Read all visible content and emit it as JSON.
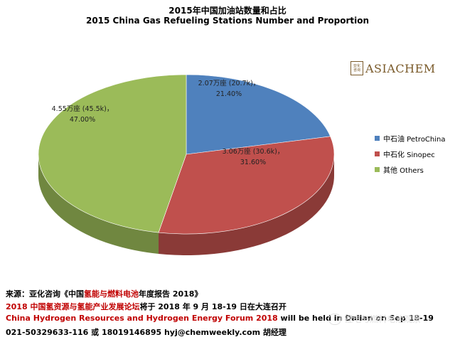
{
  "chart_data": {
    "type": "pie",
    "title": "2015年中国加油站数量和占比",
    "subtitle": "2015 China Gas Refueling Stations Number and Proportion",
    "slices": [
      {
        "name": "中石油 PetroChina",
        "value": 21.4,
        "label_line1": "2.07万座 (20.7k)，",
        "label_line2": "21.40%",
        "color": "#4F81BD"
      },
      {
        "name": "中石化 Sinopec",
        "value": 31.6,
        "label_line1": "3.06万座 (30.6k)，",
        "label_line2": "31.60%",
        "color": "#C0504D"
      },
      {
        "name": "其他 Others",
        "value": 47.0,
        "label_line1": "4.55万座 (45.5k)，",
        "label_line2": "47.00%",
        "color": "#9BBB59"
      }
    ],
    "legend_position": "right"
  },
  "logo": {
    "seal_text": "亚化咨询",
    "brand": "ASIACHEM"
  },
  "footer": {
    "line1_prefix": "来源：亚化咨询《中国",
    "line1_highlight": "氢能与燃料电池",
    "line1_suffix": "年度报告 2018》",
    "line2_red": "2018 中国氢资源与氢能产业发展论坛",
    "line2_black": "将于 2018 年 9 月 18-19 日在大连召开",
    "line3_red": "China Hydrogen Resources and Hydrogen Energy Forum 2018",
    "line3_black": " will be held in Dalian on Sep 18-19",
    "line4": "021-50329633-116 或 18019146895 hyj@chemweekly.com 胡经理"
  },
  "watermark": "锂电与燃料电池观察"
}
